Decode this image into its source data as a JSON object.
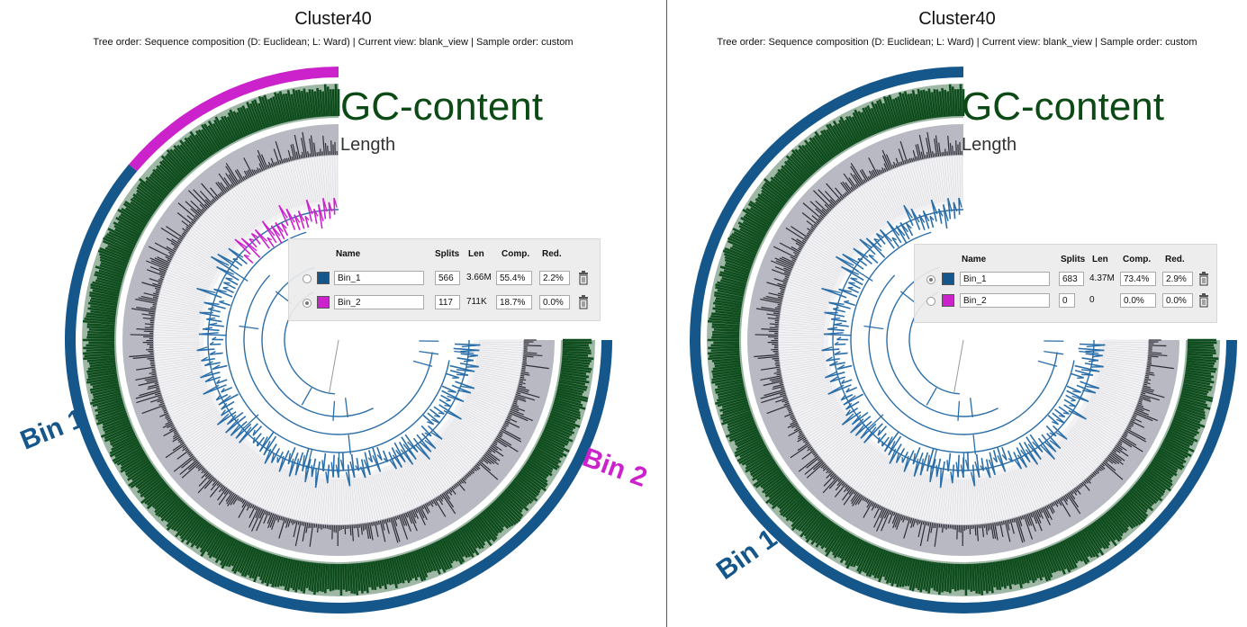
{
  "colors": {
    "bin1": "#15568b",
    "bin2": "#cc22cc",
    "gc_ring": "#0f4d1e",
    "gc_bg": "#9fb8a6",
    "length_bg": "#b8b9c2",
    "length_bar": "#2e2e36",
    "tree_blue": "#2b6ea8",
    "tree_magenta": "#cc22cc"
  },
  "left": {
    "title": "Cluster40",
    "subtitle": "Tree order: Sequence composition (D: Euclidean; L: Ward) | Current view: blank_view | Sample order: custom",
    "layer_gc": "GC-content",
    "layer_length": "Length",
    "bin1_label": "Bin 1",
    "bin2_label": "Bin 2",
    "table": {
      "headers": {
        "name": "Name",
        "splits": "Splits",
        "len": "Len",
        "comp": "Comp.",
        "red": "Red."
      },
      "rows": [
        {
          "name": "Bin_1",
          "color": "#15568b",
          "selected": false,
          "splits": "566",
          "len": "3.66M",
          "comp": "55.4%",
          "red": "2.2%"
        },
        {
          "name": "Bin_2",
          "color": "#cc22cc",
          "selected": true,
          "splits": "117",
          "len": "711K",
          "comp": "18.7%",
          "red": "0.0%"
        }
      ]
    }
  },
  "right": {
    "title": "Cluster40",
    "subtitle": "Tree order: Sequence composition (D: Euclidean; L: Ward) | Current view: blank_view | Sample order: custom",
    "layer_gc": "GC-content",
    "layer_length": "Length",
    "bin1_label": "Bin 1",
    "table": {
      "headers": {
        "name": "Name",
        "splits": "Splits",
        "len": "Len",
        "comp": "Comp.",
        "red": "Red."
      },
      "rows": [
        {
          "name": "Bin_1",
          "color": "#15568b",
          "selected": true,
          "splits": "683",
          "len": "4.37M",
          "comp": "73.4%",
          "red": "2.9%"
        },
        {
          "name": "Bin_2",
          "color": "#cc22cc",
          "selected": false,
          "splits": "0",
          "len": "0",
          "comp": "0.0%",
          "red": "0.0%"
        }
      ]
    }
  }
}
